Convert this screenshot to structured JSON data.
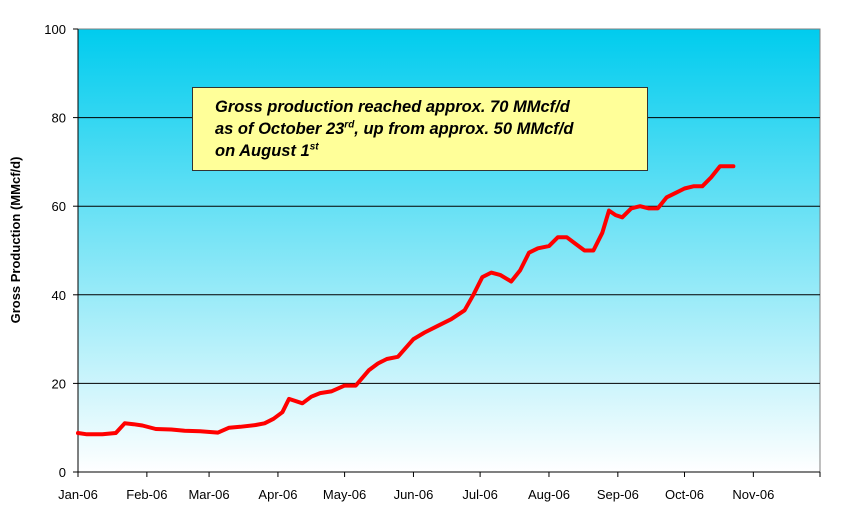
{
  "chart_data": {
    "type": "line",
    "title": "",
    "xlabel": "",
    "ylabel": "Gross Production (MMcf/d)",
    "ylim": [
      0,
      100
    ],
    "yticks": [
      0,
      20,
      40,
      60,
      80,
      100
    ],
    "xlim": [
      "2006-01-01",
      "2006-12-01"
    ],
    "xtick_labels": [
      "Jan-06",
      "Feb-06",
      "Mar-06",
      "Apr-06",
      "May-06",
      "Jun-06",
      "Jul-06",
      "Aug-06",
      "Sep-06",
      "Oct-06",
      "Nov-06"
    ],
    "grid": true,
    "legend": "none",
    "colors": {
      "line": "#ff0000",
      "plot_top": "#00ccee",
      "plot_bottom": "#ffffff",
      "annotation_bg": "#ffff99"
    },
    "series": [
      {
        "x": [
          "2006-01-01",
          "2006-01-05",
          "2006-01-12",
          "2006-01-18",
          "2006-01-22",
          "2006-01-26",
          "2006-01-30",
          "2006-02-05",
          "2006-02-12",
          "2006-02-18",
          "2006-02-25",
          "2006-03-05",
          "2006-03-10",
          "2006-03-15",
          "2006-03-22",
          "2006-03-26",
          "2006-03-30",
          "2006-04-03",
          "2006-04-06",
          "2006-04-12",
          "2006-04-16",
          "2006-04-20",
          "2006-04-25",
          "2006-05-01",
          "2006-05-06",
          "2006-05-12",
          "2006-05-16",
          "2006-05-20",
          "2006-05-25",
          "2006-06-01",
          "2006-06-06",
          "2006-06-12",
          "2006-06-18",
          "2006-06-24",
          "2006-06-28",
          "2006-07-02",
          "2006-07-06",
          "2006-07-10",
          "2006-07-15",
          "2006-07-19",
          "2006-07-23",
          "2006-07-27",
          "2006-08-01",
          "2006-08-05",
          "2006-08-09",
          "2006-08-13",
          "2006-08-17",
          "2006-08-21",
          "2006-08-25",
          "2006-08-28",
          "2006-08-31",
          "2006-09-03",
          "2006-09-07",
          "2006-09-11",
          "2006-09-15",
          "2006-09-19",
          "2006-09-23",
          "2006-09-27",
          "2006-10-01",
          "2006-10-05",
          "2006-10-09",
          "2006-10-13",
          "2006-10-17",
          "2006-10-23"
        ],
        "y": [
          8.8,
          8.5,
          8.5,
          8.8,
          11.0,
          10.8,
          10.5,
          9.7,
          9.6,
          9.3,
          9.2,
          8.9,
          10.0,
          10.2,
          10.6,
          11.0,
          12.0,
          13.5,
          16.5,
          15.5,
          17.0,
          17.8,
          18.2,
          19.5,
          19.5,
          23.0,
          24.5,
          25.5,
          26.0,
          30.0,
          31.5,
          33.0,
          34.5,
          36.5,
          40.0,
          44.0,
          45.0,
          44.5,
          43.0,
          45.5,
          49.5,
          50.5,
          51.0,
          53.0,
          53.0,
          51.5,
          50.0,
          50.0,
          54.0,
          59.0,
          58.0,
          57.5,
          59.5,
          60.0,
          59.5,
          59.5,
          62.0,
          63.0,
          64.0,
          64.5,
          64.5,
          66.5,
          69.0,
          69.0
        ]
      }
    ],
    "annotation": {
      "line1": "Gross production reached approx. 70 MMcf/d",
      "line2_a": "as of October 23",
      "line2_sup": "rd",
      "line2_b": ", up from approx. 50 MMcf/d",
      "line3_a": "on August 1",
      "line3_sup": "st"
    }
  }
}
